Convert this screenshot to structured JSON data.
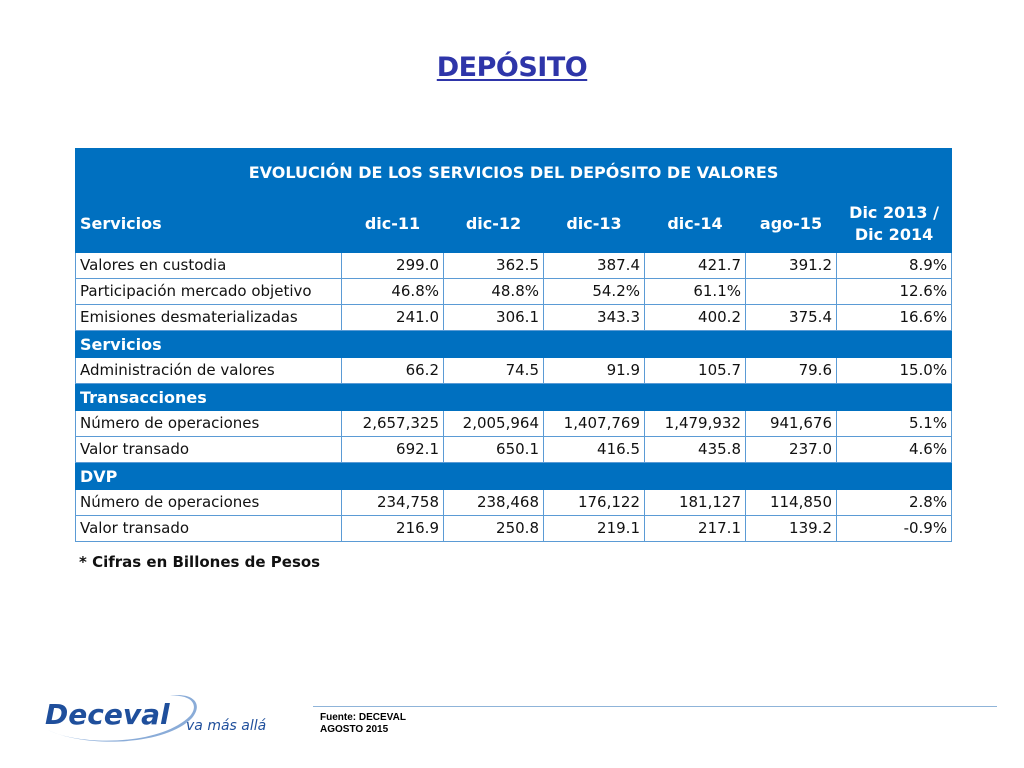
{
  "slide": {
    "title": "DEPÓSITO"
  },
  "table": {
    "title": "EVOLUCIÓN DE LOS SERVICIOS DEL DEPÓSITO DE VALORES",
    "columns": [
      "Servicios",
      "dic-11",
      "dic-12",
      "dic-13",
      "dic-14",
      "ago-15",
      "Dic 2013 /\nDic 2014"
    ],
    "rows": [
      {
        "kind": "data",
        "cells": [
          "Valores en custodia",
          "299.0",
          "362.5",
          "387.4",
          "421.7",
          "391.2",
          "8.9%"
        ]
      },
      {
        "kind": "data",
        "cells": [
          "Participación mercado objetivo",
          "46.8%",
          "48.8%",
          "54.2%",
          "61.1%",
          "",
          "12.6%"
        ]
      },
      {
        "kind": "data",
        "cells": [
          "Emisiones desmaterializadas",
          "241.0",
          "306.1",
          "343.3",
          "400.2",
          "375.4",
          "16.6%"
        ]
      },
      {
        "kind": "section",
        "label": "Servicios"
      },
      {
        "kind": "data",
        "cells": [
          "Administración de valores",
          "66.2",
          "74.5",
          "91.9",
          "105.7",
          "79.6",
          "15.0%"
        ]
      },
      {
        "kind": "section",
        "label": "Transacciones"
      },
      {
        "kind": "data",
        "cells": [
          "Número de operaciones",
          "2,657,325",
          "2,005,964",
          "1,407,769",
          "1,479,932",
          "941,676",
          "5.1%"
        ]
      },
      {
        "kind": "data",
        "cells": [
          "Valor transado",
          "692.1",
          "650.1",
          "416.5",
          "435.8",
          "237.0",
          "4.6%"
        ]
      },
      {
        "kind": "section",
        "label": "DVP"
      },
      {
        "kind": "data",
        "cells": [
          "Número de operaciones",
          "234,758",
          "238,468",
          "176,122",
          "181,127",
          "114,850",
          "2.8%"
        ]
      },
      {
        "kind": "data",
        "cells": [
          "Valor transado",
          "216.9",
          "250.8",
          "219.1",
          "217.1",
          "139.2",
          "-0.9%"
        ]
      }
    ],
    "note": "* Cifras en Billones de Pesos"
  },
  "footer": {
    "logo_text": "Deceval",
    "tagline": "va más allá",
    "source_line1": "Fuente: DECEVAL",
    "source_line2": "AGOSTO 2015"
  },
  "colors": {
    "title": "#2e35a9",
    "table_header": "#0070c0",
    "grid": "#5b9bd5",
    "logo": "#1f4f9c"
  }
}
